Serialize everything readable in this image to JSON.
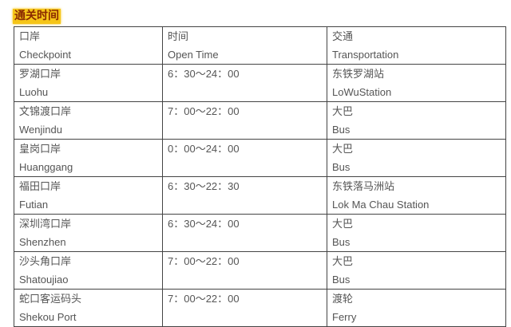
{
  "title": "通关时间",
  "header": [
    [
      "口岸",
      "Checkpoint"
    ],
    [
      "时间",
      "Open Time"
    ],
    [
      "交通",
      "Transportation"
    ]
  ],
  "rows": [
    [
      [
        "罗湖口岸",
        "Luohu"
      ],
      [
        "6：30～24：00",
        ""
      ],
      [
        "东铁罗湖站",
        "LoWuStation"
      ]
    ],
    [
      [
        "文锦渡口岸",
        "Wenjindu"
      ],
      [
        "7：00～22：00",
        ""
      ],
      [
        "大巴",
        "Bus"
      ]
    ],
    [
      [
        "皇岗口岸",
        "Huanggang"
      ],
      [
        "0：00～24：00",
        ""
      ],
      [
        "大巴",
        "Bus"
      ]
    ],
    [
      [
        "福田口岸",
        "Futian"
      ],
      [
        "6：30～22：30",
        ""
      ],
      [
        "东铁落马洲站",
        "Lok Ma Chau Station"
      ]
    ],
    [
      [
        "深圳湾口岸",
        "Shenzhen"
      ],
      [
        "6：30～24：00",
        ""
      ],
      [
        "大巴",
        "Bus"
      ]
    ],
    [
      [
        "沙头角口岸",
        "Shatoujiao"
      ],
      [
        "7：00～22：00",
        ""
      ],
      [
        "大巴",
        "Bus"
      ]
    ],
    [
      [
        "蛇口客运码头",
        "Shekou Port"
      ],
      [
        "7：00～22：00",
        ""
      ],
      [
        "渡轮",
        "Ferry"
      ]
    ]
  ]
}
